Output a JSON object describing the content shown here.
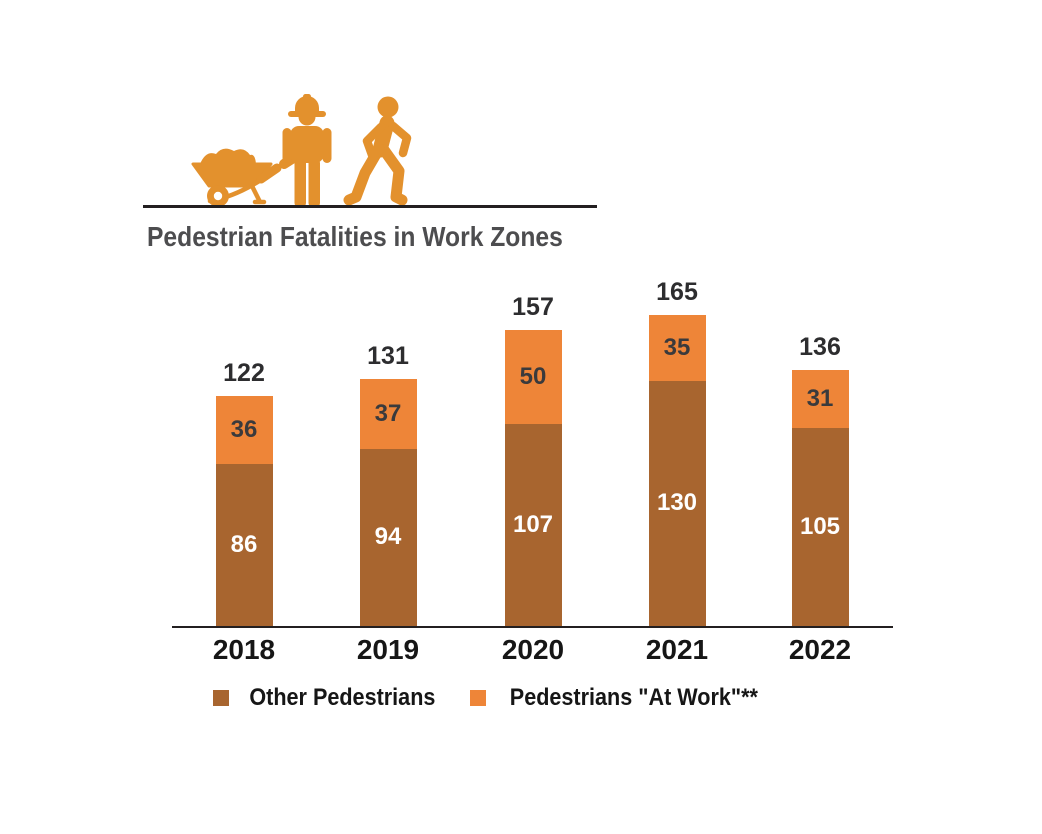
{
  "header": {
    "title": "Pedestrian Fatalities in Work Zones",
    "icons": [
      "wheelbarrow-icon",
      "construction-worker-icon",
      "walking-pedestrian-icon"
    ]
  },
  "colors": {
    "icon_orange": "#E3912D",
    "bar_brown": "#A8652F",
    "bar_orange": "#EE8538",
    "title_gray": "#4D4D4F",
    "total_label": "#2D2D2F",
    "segment_label_on_orange": "#3A3A3C",
    "segment_label_on_brown": "#FFFFFF",
    "axis_black": "#231F20"
  },
  "chart_data": {
    "type": "bar",
    "stacked": true,
    "title": "Pedestrian Fatalities in Work Zones",
    "categories": [
      "2018",
      "2019",
      "2020",
      "2021",
      "2022"
    ],
    "series": [
      {
        "name": "Other Pedestrians",
        "color": "#A8652F",
        "values": [
          86,
          94,
          107,
          130,
          105
        ]
      },
      {
        "name": "Pedestrians \"At Work\"**",
        "color": "#EE8538",
        "values": [
          36,
          37,
          50,
          35,
          31
        ]
      }
    ],
    "totals": [
      122,
      131,
      157,
      165,
      136
    ],
    "xlabel": "",
    "ylabel": "",
    "ylim": [
      0,
      170
    ],
    "grid": false,
    "axis_line": "bottom-only",
    "legend_position": "bottom"
  },
  "legend": {
    "items": [
      {
        "label": "Other Pedestrians",
        "color": "#A8652F"
      },
      {
        "label": "Pedestrians \"At Work\"**",
        "color": "#EE8538"
      }
    ]
  }
}
